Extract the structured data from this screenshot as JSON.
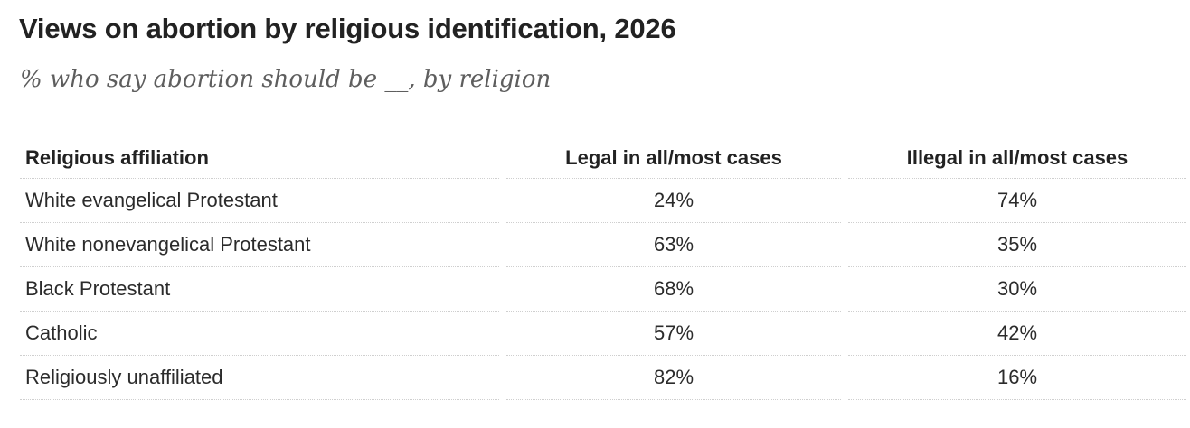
{
  "chart_data": {
    "type": "table",
    "title": "Views on abortion by religious identification, 2026",
    "subtitle": "% who say abortion should be __, by religion",
    "columns": [
      "Religious affiliation",
      "Legal in all/most cases",
      "Illegal in all/most cases"
    ],
    "rows": [
      {
        "label": "White evangelical Protestant",
        "legal": "24%",
        "illegal": "74%"
      },
      {
        "label": "White nonevangelical Protestant",
        "legal": "63%",
        "illegal": "35%"
      },
      {
        "label": "Black Protestant",
        "legal": "68%",
        "illegal": "30%"
      },
      {
        "label": "Catholic",
        "legal": "57%",
        "illegal": "42%"
      },
      {
        "label": "Religiously unaffiliated",
        "legal": "82%",
        "illegal": "16%"
      }
    ],
    "series": [
      {
        "name": "Legal in all/most cases",
        "values": [
          24,
          63,
          68,
          57,
          82
        ]
      },
      {
        "name": "Illegal in all/most cases",
        "values": [
          74,
          35,
          30,
          42,
          16
        ]
      }
    ],
    "categories": [
      "White evangelical Protestant",
      "White nonevangelical Protestant",
      "Black Protestant",
      "Catholic",
      "Religiously unaffiliated"
    ]
  }
}
